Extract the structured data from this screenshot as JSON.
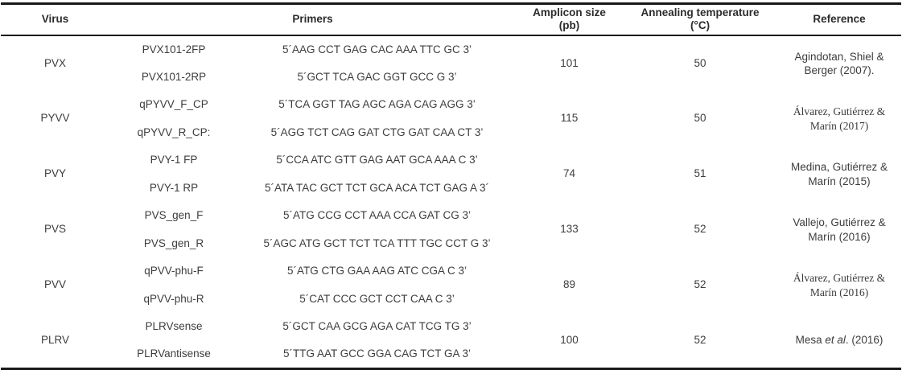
{
  "table": {
    "headers": {
      "virus": "Virus",
      "primers": "Primers",
      "amplicon_line1": "Amplicon size",
      "amplicon_line2": "(pb)",
      "annealing_line1": "Annealing temperature",
      "annealing_line2": "(°C)",
      "reference": "Reference"
    },
    "rows": [
      {
        "virus": "PVX",
        "primers": [
          {
            "name": "PVX101-2FP",
            "sequence": "5´AAG CCT GAG CAC AAA TTC GC 3’"
          },
          {
            "name": "PVX101-2RP",
            "sequence": "5´GCT TCA GAC GGT GCC G 3’"
          }
        ],
        "amplicon_size": "101",
        "annealing_temp": "50",
        "reference": {
          "pre": "Agindotan, Shiel & Berger (2007).",
          "em": "",
          "post": ""
        }
      },
      {
        "virus": "PYVV",
        "primers": [
          {
            "name": "qPYVV_F_CP",
            "sequence": "5´TCA GGT TAG AGC AGA CAG AGG 3’"
          },
          {
            "name": "qPYVV_R_CP:",
            "sequence": "5´AGG TCT CAG GAT CTG GAT CAA CT 3’"
          }
        ],
        "amplicon_size": "115",
        "annealing_temp": "50",
        "reference": {
          "pre": "Álvarez, Gutiérrez & Marín (2017)",
          "em": "",
          "post": ""
        }
      },
      {
        "virus": "PVY",
        "primers": [
          {
            "name": "PVY-1 FP",
            "sequence": "5´CCA ATC GTT GAG AAT GCA AAA C 3’"
          },
          {
            "name": "PVY-1 RP",
            "sequence": "5´ATA TAC GCT TCT GCA ACA TCT GAG A 3´"
          }
        ],
        "amplicon_size": "74",
        "annealing_temp": "51",
        "reference": {
          "pre": "Medina, Gutiérrez & Marín (2015)",
          "em": "",
          "post": ""
        }
      },
      {
        "virus": "PVS",
        "primers": [
          {
            "name": "PVS_gen_F",
            "sequence": "5´ATG CCG CCT AAA CCA GAT CG 3’"
          },
          {
            "name": "PVS_gen_R",
            "sequence": "5´AGC ATG GCT TCT TCA TTT TGC CCT G 3’"
          }
        ],
        "amplicon_size": "133",
        "annealing_temp": "52",
        "reference": {
          "pre": "Vallejo, Gutiérrez & Marín (2016)",
          "em": "",
          "post": ""
        }
      },
      {
        "virus": "PVV",
        "primers": [
          {
            "name": "qPVV-phu-F",
            "sequence": "5´ATG CTG GAA AAG ATC CGA C 3’"
          },
          {
            "name": "qPVV-phu-R",
            "sequence": "5´CAT CCC GCT CCT CAA C 3’"
          }
        ],
        "amplicon_size": "89",
        "annealing_temp": "52",
        "reference": {
          "pre": "Álvarez, Gutiérrez & Marín (2016)",
          "em": "",
          "post": ""
        }
      },
      {
        "virus": "PLRV",
        "primers": [
          {
            "name": "PLRVsense",
            "sequence": "5´GCT CAA GCG AGA CAT TCG TG 3’"
          },
          {
            "name": "PLRVantisense",
            "sequence": "5´TTG AAT GCC GGA CAG TCT GA 3’"
          }
        ],
        "amplicon_size": "100",
        "annealing_temp": "52",
        "reference": {
          "pre": "Mesa ",
          "em": "et al",
          "post": ". (2016)"
        }
      }
    ]
  },
  "colors": {
    "text": "#3d3d3d",
    "header_text": "#2c2c2c",
    "border": "#181818",
    "background": "#ffffff"
  }
}
